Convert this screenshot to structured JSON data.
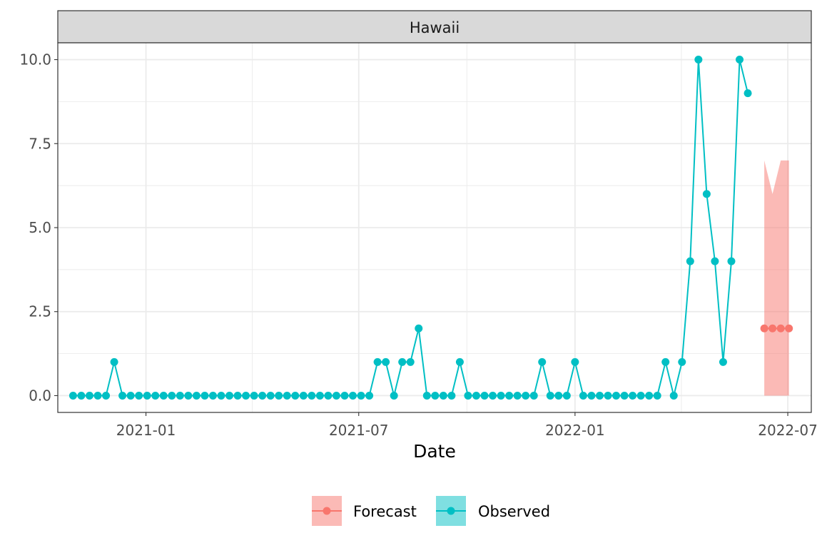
{
  "chart_data": {
    "type": "line",
    "facet_label": "Hawaii",
    "xlabel": "Date",
    "ylabel": "",
    "xlim": [
      "2020-10-18",
      "2022-07-21"
    ],
    "ylim": [
      -0.5,
      10.5
    ],
    "x_ticks": [
      "2021-01-01",
      "2021-07-01",
      "2022-01-01",
      "2022-07-01"
    ],
    "x_tick_labels": [
      "2021-01",
      "2021-07",
      "2022-01",
      "2022-07"
    ],
    "y_ticks": [
      0,
      2.5,
      5,
      7.5,
      10
    ],
    "y_tick_labels": [
      "0.0",
      "2.5",
      "5.0",
      "7.5",
      "10.0"
    ],
    "grid": true,
    "legend_position": "bottom",
    "series": [
      {
        "name": "Observed",
        "color": "#00BFC4",
        "start_date": "2020-10-31",
        "interval_days": 7,
        "values": [
          0,
          0,
          0,
          0,
          0,
          1,
          0,
          0,
          0,
          0,
          0,
          0,
          0,
          0,
          0,
          0,
          0,
          0,
          0,
          0,
          0,
          0,
          0,
          0,
          0,
          0,
          0,
          0,
          0,
          0,
          0,
          0,
          0,
          0,
          0,
          0,
          0,
          1,
          1,
          0,
          1,
          1,
          2,
          0,
          0,
          0,
          0,
          1,
          0,
          0,
          0,
          0,
          0,
          0,
          0,
          0,
          0,
          1,
          0,
          0,
          0,
          1,
          0,
          0,
          0,
          0,
          0,
          0,
          0,
          0,
          0,
          0,
          1,
          0,
          1,
          4,
          10,
          6,
          4,
          1,
          4,
          10,
          9
        ]
      },
      {
        "name": "Forecast",
        "color": "#F8766D",
        "x": [
          "2022-06-11",
          "2022-06-18",
          "2022-06-25",
          "2022-07-02"
        ],
        "values": [
          2,
          2,
          2,
          2
        ],
        "lower": [
          0,
          0,
          0,
          0
        ],
        "upper": [
          7,
          6,
          7,
          7
        ],
        "band_color": "#F8766D"
      }
    ]
  },
  "legend": {
    "items": [
      {
        "label": "Forecast",
        "color": "#F8766D"
      },
      {
        "label": "Observed",
        "color": "#00BFC4"
      }
    ]
  }
}
